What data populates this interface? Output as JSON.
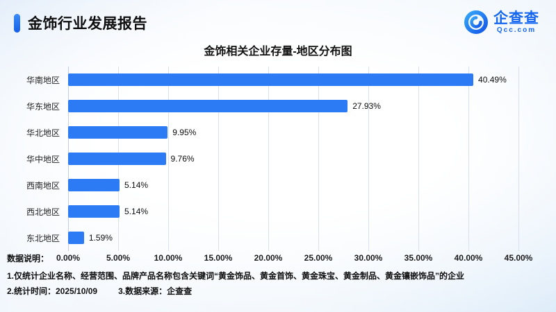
{
  "header": {
    "title": "金饰行业发展报告",
    "logo": {
      "name": "企查查",
      "domain": "Qcc.com"
    }
  },
  "chart_data": {
    "type": "bar",
    "orientation": "horizontal",
    "title": "金饰相关企业存量-地区分布图",
    "categories": [
      "华南地区",
      "华东地区",
      "华北地区",
      "华中地区",
      "西南地区",
      "西北地区",
      "东北地区"
    ],
    "values": [
      40.49,
      27.93,
      9.95,
      9.76,
      5.14,
      5.14,
      1.59
    ],
    "value_labels": [
      "40.49%",
      "27.93%",
      "9.95%",
      "9.76%",
      "5.14%",
      "5.14%",
      "1.59%"
    ],
    "x_ticks": [
      "0.00%",
      "5.00%",
      "10.00%",
      "15.00%",
      "20.00%",
      "25.00%",
      "30.00%",
      "35.00%",
      "40.00%",
      "45.00%"
    ],
    "xlim": [
      0,
      45
    ],
    "bar_color": "#2d7bf4",
    "grid": true,
    "legend": "none"
  },
  "footer": {
    "label": "数据说明：",
    "note1": "1.仅统计企业名称、经营范围、品牌产品名称包含关键词“黄金饰品、黄金首饰、黄金珠宝、黄金制品、黄金镶嵌饰品”的企业",
    "note2_items": [
      "2.统计时间：2025/10/09",
      "3.数据来源：企查查"
    ]
  }
}
